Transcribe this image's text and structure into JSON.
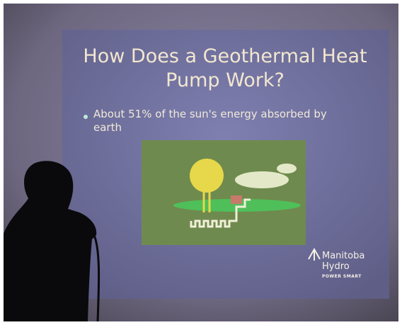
{
  "slide": {
    "title": "How Does a Geothermal Heat Pump Work?",
    "bullet": "About 51% of the sun's energy absorbed by earth",
    "logo": {
      "name_line1": "Manitoba",
      "name_line2": "Hydro",
      "tagline": "POWER SMART"
    }
  }
}
